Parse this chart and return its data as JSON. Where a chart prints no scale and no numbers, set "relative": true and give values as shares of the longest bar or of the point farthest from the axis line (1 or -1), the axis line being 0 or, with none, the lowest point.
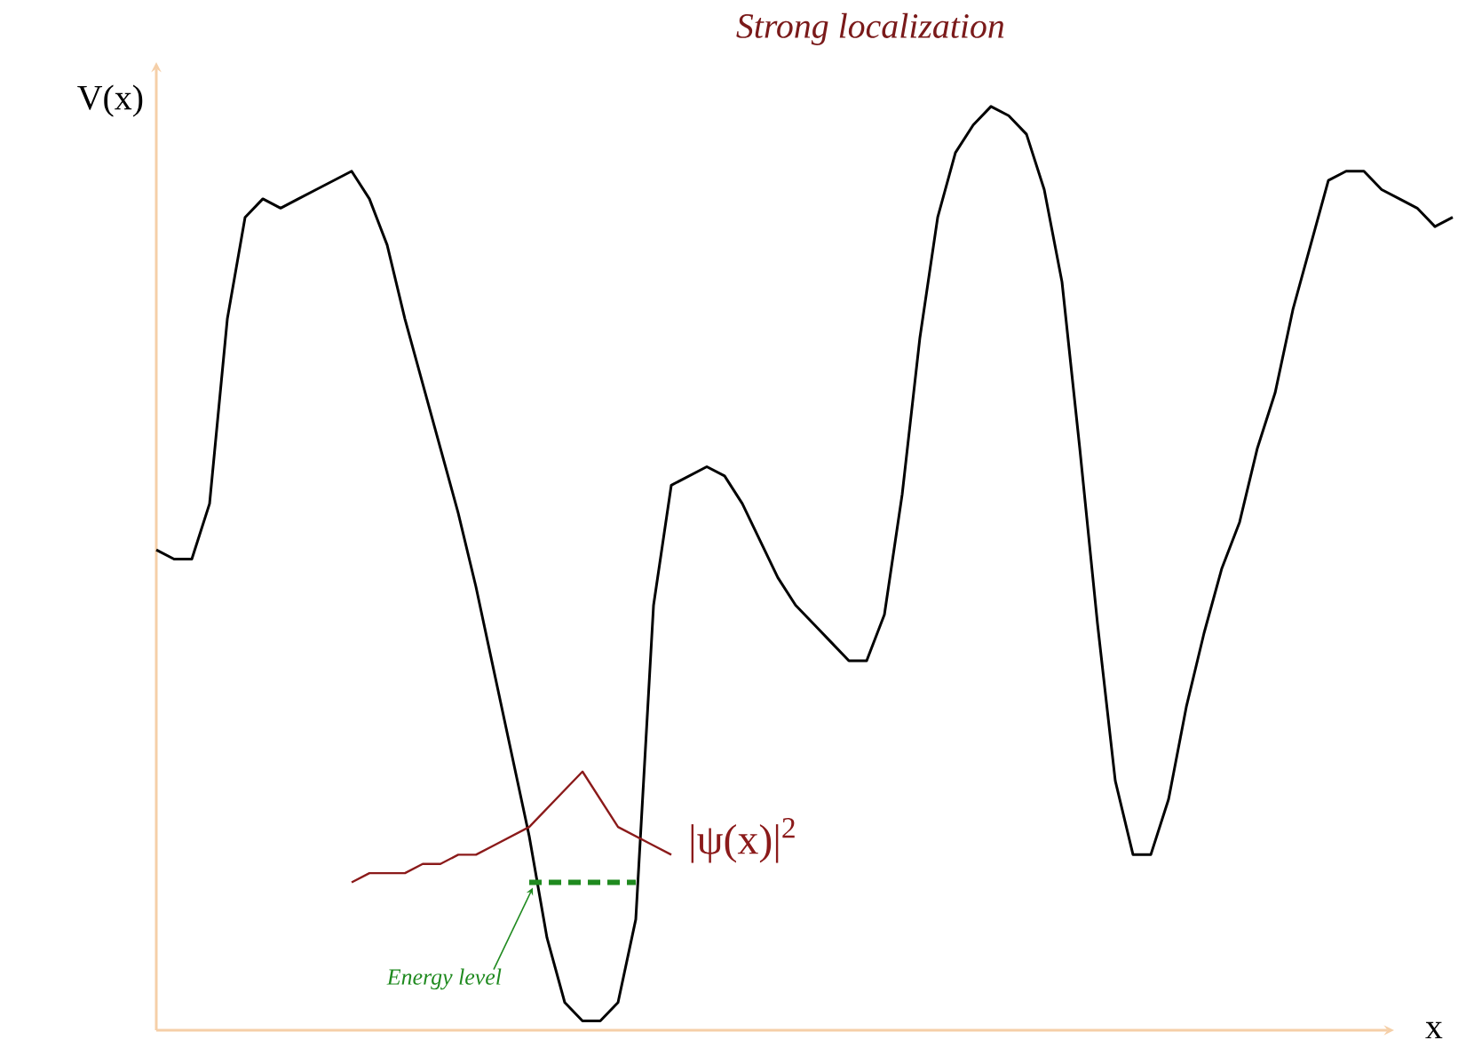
{
  "chart_data": {
    "type": "line",
    "title": "Strong localization",
    "xlabel": "x",
    "ylabel": "V(x)",
    "relative": true,
    "categories": [
      null,
      null,
      null,
      null,
      null,
      null,
      null,
      null,
      null,
      null,
      null,
      null,
      null,
      null,
      null,
      null,
      null,
      null,
      null,
      null,
      null,
      null,
      null,
      null,
      null,
      null,
      null,
      null,
      null,
      null,
      null,
      null,
      null,
      null,
      null,
      null,
      null,
      null,
      null,
      null,
      null,
      null,
      null,
      null,
      null,
      null,
      null,
      null,
      null,
      null,
      null,
      null,
      null,
      null,
      null,
      null,
      null,
      null,
      null,
      null,
      null,
      null,
      null,
      null,
      null,
      null,
      null,
      null,
      null,
      null,
      null,
      null,
      null,
      null
    ],
    "series": [
      {
        "color": "#000000",
        "line_style": "solid",
        "values": [
          0.52,
          0.51,
          0.51,
          0.57,
          0.77,
          0.88,
          0.9,
          0.89,
          0.9,
          0.91,
          0.92,
          0.93,
          0.9,
          0.85,
          0.77,
          0.7,
          0.63,
          0.56,
          0.48,
          0.39,
          0.3,
          0.21,
          0.1,
          0.03,
          0.01,
          0.01,
          0.03,
          0.12,
          0.46,
          0.59,
          0.6,
          0.61,
          0.6,
          0.57,
          0.53,
          0.49,
          0.46,
          0.44,
          0.42,
          0.4,
          0.4,
          0.45,
          0.58,
          0.75,
          0.88,
          0.95,
          0.98,
          1.0,
          0.99,
          0.97,
          0.91,
          0.81,
          0.63,
          0.44,
          0.27,
          0.19,
          0.19,
          0.25,
          0.35,
          0.43,
          0.5,
          0.55,
          0.63,
          0.69,
          0.78,
          0.85,
          0.92,
          0.93,
          0.93,
          0.91,
          0.9,
          0.89,
          0.87,
          0.88
        ]
      },
      {
        "name": "|ψ(x)|$^{2}$",
        "color": "#8b1a1a",
        "line_style": "solid",
        "values": [
          null,
          null,
          null,
          null,
          null,
          null,
          null,
          null,
          null,
          null,
          null,
          0.16,
          0.17,
          0.17,
          0.17,
          0.18,
          0.18,
          0.19,
          0.19,
          0.2,
          0.21,
          0.22,
          0.24,
          0.26,
          0.28,
          0.25,
          0.22,
          0.21,
          0.2,
          0.19,
          null,
          null,
          null,
          null,
          null,
          null,
          null,
          null,
          null,
          null,
          null,
          null,
          null,
          null,
          null,
          null,
          null,
          null,
          null,
          null,
          null,
          null,
          null,
          null,
          null,
          null,
          null,
          null,
          null,
          null,
          null,
          null,
          null,
          null,
          null,
          null,
          null,
          null,
          null,
          null,
          null,
          null,
          null,
          null
        ]
      },
      {
        "name": "Energy level",
        "color": "#1f8a1f",
        "line_style": "dashed",
        "values": [
          null,
          null,
          null,
          null,
          null,
          null,
          null,
          null,
          null,
          null,
          null,
          null,
          null,
          null,
          null,
          null,
          null,
          null,
          null,
          null,
          null,
          0.16,
          0.16,
          0.16,
          0.16,
          0.16,
          0.16,
          0.16,
          null,
          null,
          null,
          null,
          null,
          null,
          null,
          null,
          null,
          null,
          null,
          null,
          null,
          null,
          null,
          null,
          null,
          null,
          null,
          null,
          null,
          null,
          null,
          null,
          null,
          null,
          null,
          null,
          null,
          null,
          null,
          null,
          null,
          null,
          null,
          null,
          null,
          null,
          null,
          null,
          null,
          null,
          null,
          null,
          null,
          null
        ]
      }
    ]
  }
}
